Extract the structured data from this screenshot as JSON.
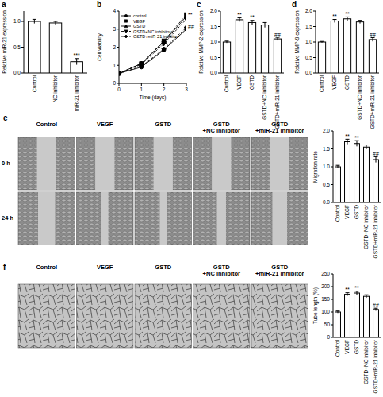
{
  "chart_data": [
    {
      "type": "bar",
      "panel": "a",
      "y_label": "Relative miR-21 expression",
      "categories": [
        "Control",
        "NC inhibitor",
        "miR-21 inhibitor"
      ],
      "values": [
        1.0,
        0.97,
        0.22
      ],
      "errors": [
        0.04,
        0.03,
        0.06
      ],
      "annotations": [
        null,
        null,
        "***"
      ],
      "color": "#ffffff",
      "ylim": [
        0,
        1.2
      ],
      "yticks": [
        {
          "value": 0,
          "label": "0.0"
        },
        {
          "value": 0.5,
          "label": "0.5"
        },
        {
          "value": 1,
          "label": "1.0"
        }
      ]
    },
    {
      "type": "line",
      "panel": "b",
      "y_label": "Cell viability",
      "x_label": "Time (days)",
      "x": [
        0,
        1,
        2,
        3
      ],
      "xlim": [
        0,
        3
      ],
      "xticks": [
        0,
        1,
        2,
        3
      ],
      "ylim": [
        0,
        4
      ],
      "yticks": [
        0,
        1,
        2,
        3,
        4
      ],
      "legend": "upper left",
      "series": [
        {
          "name": "control",
          "color": "#000000",
          "marker": "circle",
          "line_style": "solid",
          "values": [
            0.55,
            0.9,
            1.85,
            3.0
          ]
        },
        {
          "name": "VEGF",
          "color": "#000000",
          "marker": "square",
          "line_style": "dashed",
          "values": [
            0.55,
            1.1,
            2.35,
            3.8
          ],
          "annotation": "**"
        },
        {
          "name": "GSTD",
          "color": "#000000",
          "marker": "triangle",
          "line_style": "solid",
          "values": [
            0.55,
            1.1,
            2.3,
            3.7
          ]
        },
        {
          "name": "GSTD+NC inhibitor",
          "color": "#000000",
          "marker": "triangle-down",
          "line_style": "dashed",
          "values": [
            0.55,
            1.05,
            2.2,
            3.55
          ]
        },
        {
          "name": "GSTD+miR-21 inhibitor",
          "color": "#000000",
          "marker": "diamond",
          "line_style": "dashed",
          "values": [
            0.55,
            0.95,
            1.9,
            3.1
          ],
          "annotation": "##"
        }
      ]
    },
    {
      "type": "bar",
      "panel": "c",
      "y_label": "Relative MMP-2 expression",
      "categories": [
        "Control",
        "VEGF",
        "GSTD",
        "GSTD+NC inhibitor",
        "GSTD+miR-21 inhibitor"
      ],
      "values": [
        1.0,
        1.72,
        1.63,
        1.55,
        1.1
      ],
      "errors": [
        0.03,
        0.06,
        0.07,
        0.08,
        0.05
      ],
      "annotations": [
        null,
        "**",
        "**",
        null,
        "##"
      ],
      "color": "#ffffff",
      "ylim": [
        0,
        2.0
      ],
      "yticks": [
        {
          "value": 0,
          "label": "0.0"
        },
        {
          "value": 0.5,
          "label": "0.5"
        },
        {
          "value": 1,
          "label": "1.0"
        },
        {
          "value": 1.5,
          "label": "1.5"
        },
        {
          "value": 2,
          "label": "2.0"
        }
      ]
    },
    {
      "type": "bar",
      "panel": "d",
      "y_label": "Relative MMP-9 expression",
      "categories": [
        "Control",
        "VEGF",
        "GSTD",
        "GSTD+NC inhibitor",
        "GSTD+miR-21 inhibitor"
      ],
      "values": [
        1.0,
        1.68,
        1.75,
        1.65,
        1.08
      ],
      "errors": [
        0.02,
        0.05,
        0.06,
        0.05,
        0.06
      ],
      "annotations": [
        null,
        "**",
        "**",
        null,
        "##"
      ],
      "color": "#ffffff",
      "ylim": [
        0,
        2.0
      ],
      "yticks": [
        {
          "value": 0,
          "label": "0.0"
        },
        {
          "value": 0.5,
          "label": "0.5"
        },
        {
          "value": 1,
          "label": "1.0"
        },
        {
          "value": 1.5,
          "label": "1.5"
        },
        {
          "value": 2,
          "label": "2.0"
        }
      ]
    },
    {
      "type": "bar",
      "panel": "e",
      "y_label": "Migration rate",
      "image_columns": [
        "Control",
        "VEGF",
        "GSTD",
        "GSTD\n+NC inhibitor",
        "GSTD\n+miR-21 inhibitor"
      ],
      "image_rows": [
        "0 h",
        "24 h"
      ],
      "categories": [
        "Control",
        "VEGF",
        "GSTD",
        "GSTD+NC inhibitor",
        "GSTD+miR-21 inhibitor"
      ],
      "values": [
        1.0,
        1.7,
        1.65,
        1.55,
        1.2
      ],
      "errors": [
        0.04,
        0.07,
        0.08,
        0.06,
        0.08
      ],
      "annotations": [
        null,
        "**",
        "**",
        null,
        "##"
      ],
      "color": "#ffffff",
      "ylim": [
        0,
        2.0
      ],
      "yticks": [
        {
          "value": 0,
          "label": "0.0"
        },
        {
          "value": 0.5,
          "label": "0.5"
        },
        {
          "value": 1,
          "label": "1.0"
        },
        {
          "value": 1.5,
          "label": "1.5"
        },
        {
          "value": 2,
          "label": "2.0"
        }
      ]
    },
    {
      "type": "bar",
      "panel": "f",
      "y_label": "Tube length (%)",
      "image_columns": [
        "Control",
        "VEGF",
        "GSTD",
        "GSTD\n+NC inhibitor",
        "GSTD\n+miR-21 inhibitor"
      ],
      "categories": [
        "Control",
        "VEGF",
        "GSTD",
        "GSTD+NC inhibitor",
        "GSTD+miR-21 inhibitor"
      ],
      "values": [
        100,
        170,
        175,
        162,
        110
      ],
      "errors": [
        4,
        6,
        7,
        6,
        5
      ],
      "annotations": [
        null,
        "**",
        "**",
        null,
        "##"
      ],
      "color": "#ffffff",
      "ylim": [
        0,
        250
      ],
      "yticks": [
        0,
        50,
        100,
        150,
        200,
        250
      ]
    }
  ]
}
